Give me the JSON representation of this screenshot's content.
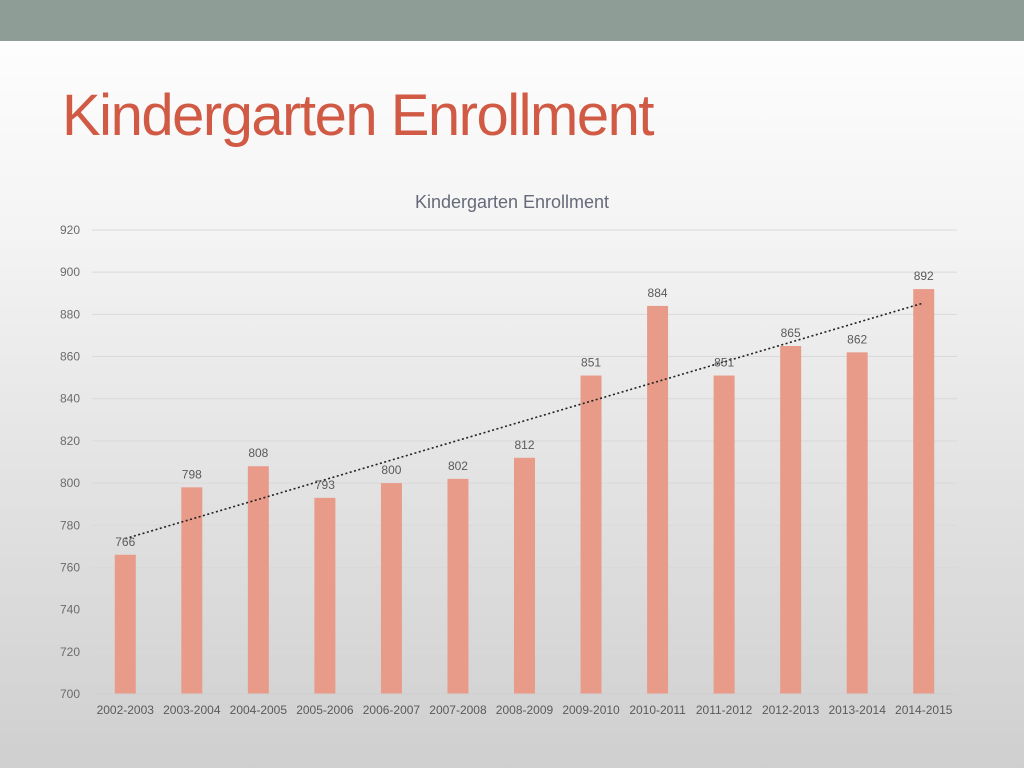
{
  "slide": {
    "title": "Kindergarten Enrollment"
  },
  "colors": {
    "top_band": "#8e9e97",
    "title": "#d15a45",
    "bar": "#e99b8a",
    "gridline": "#d9d9d9",
    "trendline": "#222222"
  },
  "chart_data": {
    "type": "bar",
    "title": "Kindergarten Enrollment",
    "xlabel": "",
    "ylabel": "",
    "categories": [
      "2002-2003",
      "2003-2004",
      "2004-2005",
      "2005-2006",
      "2006-2007",
      "2007-2008",
      "2008-2009",
      "2009-2010",
      "2010-2011",
      "2011-2012",
      "2012-2013",
      "2013-2014",
      "2014-2015"
    ],
    "values": [
      766,
      798,
      808,
      793,
      800,
      802,
      812,
      851,
      884,
      851,
      865,
      862,
      892
    ],
    "ylim": [
      700,
      920
    ],
    "yticks": [
      "700",
      "720",
      "740",
      "760",
      "780",
      "800",
      "820",
      "840",
      "860",
      "880",
      "900",
      "920"
    ],
    "grid": true,
    "legend": "none",
    "trendline": "linear",
    "data_labels": true
  }
}
